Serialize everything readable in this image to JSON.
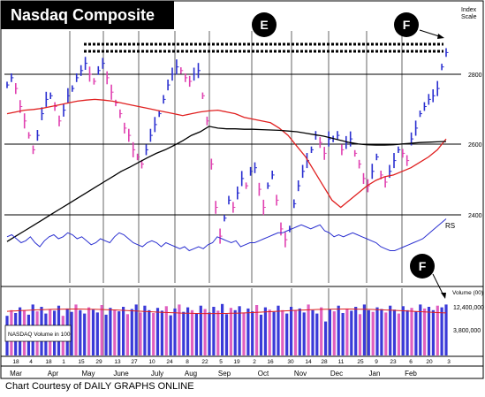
{
  "chart_data": {
    "type": "line",
    "title": "Nasdaq Composite",
    "price_axis": {
      "label_line1": "Index",
      "label_line2": "Scale",
      "ticks": [
        2400,
        2600,
        2800
      ],
      "ylim": [
        2290,
        2990
      ]
    },
    "volume_axis": {
      "label_line1": "Volume (00)",
      "ticks": [
        "12,400,000",
        "3,800,000"
      ]
    },
    "rs_label": "RS",
    "volume_label": "NASDAQ Volume in 100",
    "months": [
      "Mar",
      "Apr",
      "May",
      "June",
      "July",
      "Aug",
      "Sep",
      "Oct",
      "Nov",
      "Dec",
      "Jan",
      "Feb"
    ],
    "day_ticks": [
      "18",
      "4",
      "18",
      "1",
      "15",
      "29",
      "13",
      "27",
      "10",
      "24",
      "8",
      "22",
      "5",
      "19",
      "2",
      "16",
      "30",
      "14",
      "28",
      "11",
      "25",
      "9",
      "23",
      "6",
      "20",
      "3"
    ],
    "markers": [
      {
        "label": "E",
        "region": "price"
      },
      {
        "label": "F",
        "region": "price"
      },
      {
        "label": "F",
        "region": "volume"
      }
    ],
    "resistance_lines": 2,
    "series": [
      {
        "name": "price",
        "color": "#2a2fd0",
        "values": [
          2840,
          2860,
          2830,
          2780,
          2740,
          2700,
          2660,
          2700,
          2760,
          2800,
          2810,
          2780,
          2740,
          2770,
          2810,
          2830,
          2860,
          2880,
          2900,
          2870,
          2850,
          2880,
          2900,
          2860,
          2820,
          2790,
          2760,
          2720,
          2700,
          2660,
          2640,
          2620,
          2660,
          2700,
          2730,
          2760,
          2800,
          2840,
          2870,
          2890,
          2880,
          2860,
          2850,
          2870,
          2880,
          2810,
          2740,
          2620,
          2500,
          2420,
          2470,
          2520,
          2500,
          2540,
          2580,
          2560,
          2600,
          2610,
          2550,
          2500,
          2560,
          2590,
          2520,
          2440,
          2410,
          2440,
          2510,
          2560,
          2600,
          2630,
          2660,
          2700,
          2680,
          2650,
          2690,
          2690,
          2700,
          2660,
          2680,
          2690,
          2650,
          2620,
          2580,
          2560,
          2600,
          2640,
          2590,
          2570,
          2600,
          2630,
          2660,
          2650,
          2630,
          2690,
          2720,
          2760,
          2780,
          2800,
          2810,
          2830,
          2890,
          2930
        ]
      },
      {
        "name": "moving-average-red",
        "color": "#e02020",
        "values": [
          2760,
          2765,
          2770,
          2772,
          2775,
          2780,
          2785,
          2790,
          2795,
          2798,
          2800,
          2798,
          2795,
          2790,
          2785,
          2780,
          2775,
          2770,
          2765,
          2760,
          2755,
          2760,
          2765,
          2768,
          2770,
          2765,
          2760,
          2750,
          2745,
          2740,
          2735,
          2720,
          2700,
          2670,
          2640,
          2600,
          2560,
          2520,
          2500,
          2520,
          2540,
          2560,
          2575,
          2585,
          2590,
          2600,
          2610,
          2625,
          2640,
          2660,
          2690
        ]
      },
      {
        "name": "moving-average-black",
        "color": "#000000",
        "values": [
          2405,
          2420,
          2435,
          2450,
          2465,
          2480,
          2495,
          2510,
          2525,
          2540,
          2555,
          2570,
          2585,
          2600,
          2612,
          2625,
          2638,
          2650,
          2660,
          2672,
          2685,
          2700,
          2710,
          2725,
          2720,
          2718,
          2718,
          2717,
          2717,
          2716,
          2715,
          2714,
          2712,
          2710,
          2706,
          2702,
          2698,
          2692,
          2686,
          2680,
          2676,
          2674,
          2673,
          2673,
          2674,
          2676,
          2678,
          2680,
          2681,
          2682,
          2683
        ]
      },
      {
        "name": "rs-line",
        "color": "#2a2fd0",
        "values": [
          0.45,
          0.5,
          0.4,
          0.3,
          0.35,
          0.45,
          0.3,
          0.2,
          0.35,
          0.45,
          0.5,
          0.4,
          0.45,
          0.55,
          0.5,
          0.4,
          0.45,
          0.35,
          0.25,
          0.3,
          0.4,
          0.35,
          0.3,
          0.45,
          0.55,
          0.5,
          0.4,
          0.3,
          0.25,
          0.2,
          0.3,
          0.35,
          0.3,
          0.2,
          0.3,
          0.25,
          0.2,
          0.15,
          0.2,
          0.1,
          0.15,
          0.2,
          0.15,
          0.25,
          0.3,
          0.45,
          0.4,
          0.35,
          0.3,
          0.35,
          0.2,
          0.25,
          0.3,
          0.3,
          0.35,
          0.4,
          0.45,
          0.5,
          0.55,
          0.55,
          0.6,
          0.65,
          0.7,
          0.75,
          0.7,
          0.65,
          0.7,
          0.75,
          0.6,
          0.55,
          0.45,
          0.5,
          0.45,
          0.5,
          0.55,
          0.5,
          0.45,
          0.4,
          0.35,
          0.3,
          0.2,
          0.15,
          0.1,
          0.1,
          0.15,
          0.2,
          0.25,
          0.3,
          0.35,
          0.4,
          0.5,
          0.6,
          0.7,
          0.8,
          0.9
        ]
      },
      {
        "name": "volume",
        "color": "#3a3ad8",
        "down_color": "#e060c0",
        "values": [
          0.7,
          0.8,
          0.75,
          0.85,
          0.8,
          0.72,
          0.9,
          0.78,
          0.86,
          0.74,
          0.82,
          0.79,
          0.88,
          0.7,
          0.83,
          0.77,
          0.9,
          0.8,
          0.74,
          0.85,
          0.81,
          0.76,
          0.89,
          0.72,
          0.84,
          0.8,
          0.78,
          0.86,
          0.73,
          0.82,
          0.9,
          0.76,
          0.88,
          0.8,
          0.75,
          0.84,
          0.79,
          0.87,
          0.71,
          0.83,
          0.9,
          0.77,
          0.85,
          0.8,
          0.74,
          0.88,
          0.82,
          0.76,
          0.86,
          0.79,
          0.91,
          0.73,
          0.84,
          0.8,
          0.87,
          0.75,
          0.83,
          0.78,
          0.89,
          0.72,
          0.85,
          0.81,
          0.77,
          0.88,
          0.8,
          0.74,
          0.86,
          0.79,
          0.83,
          0.76,
          0.9,
          0.8,
          0.74,
          0.85,
          0.6,
          0.82,
          0.78,
          0.88,
          0.75,
          0.83,
          0.79,
          0.86,
          0.73,
          0.9,
          0.8,
          0.77,
          0.85,
          0.82,
          0.76,
          0.88,
          0.81,
          0.74,
          0.87,
          0.8,
          0.84,
          0.78,
          0.9,
          0.83,
          0.86,
          0.8,
          0.88,
          0.85,
          0.9
        ]
      }
    ]
  },
  "credit": "Chart Courtesy of DAILY GRAPHS ONLINE"
}
